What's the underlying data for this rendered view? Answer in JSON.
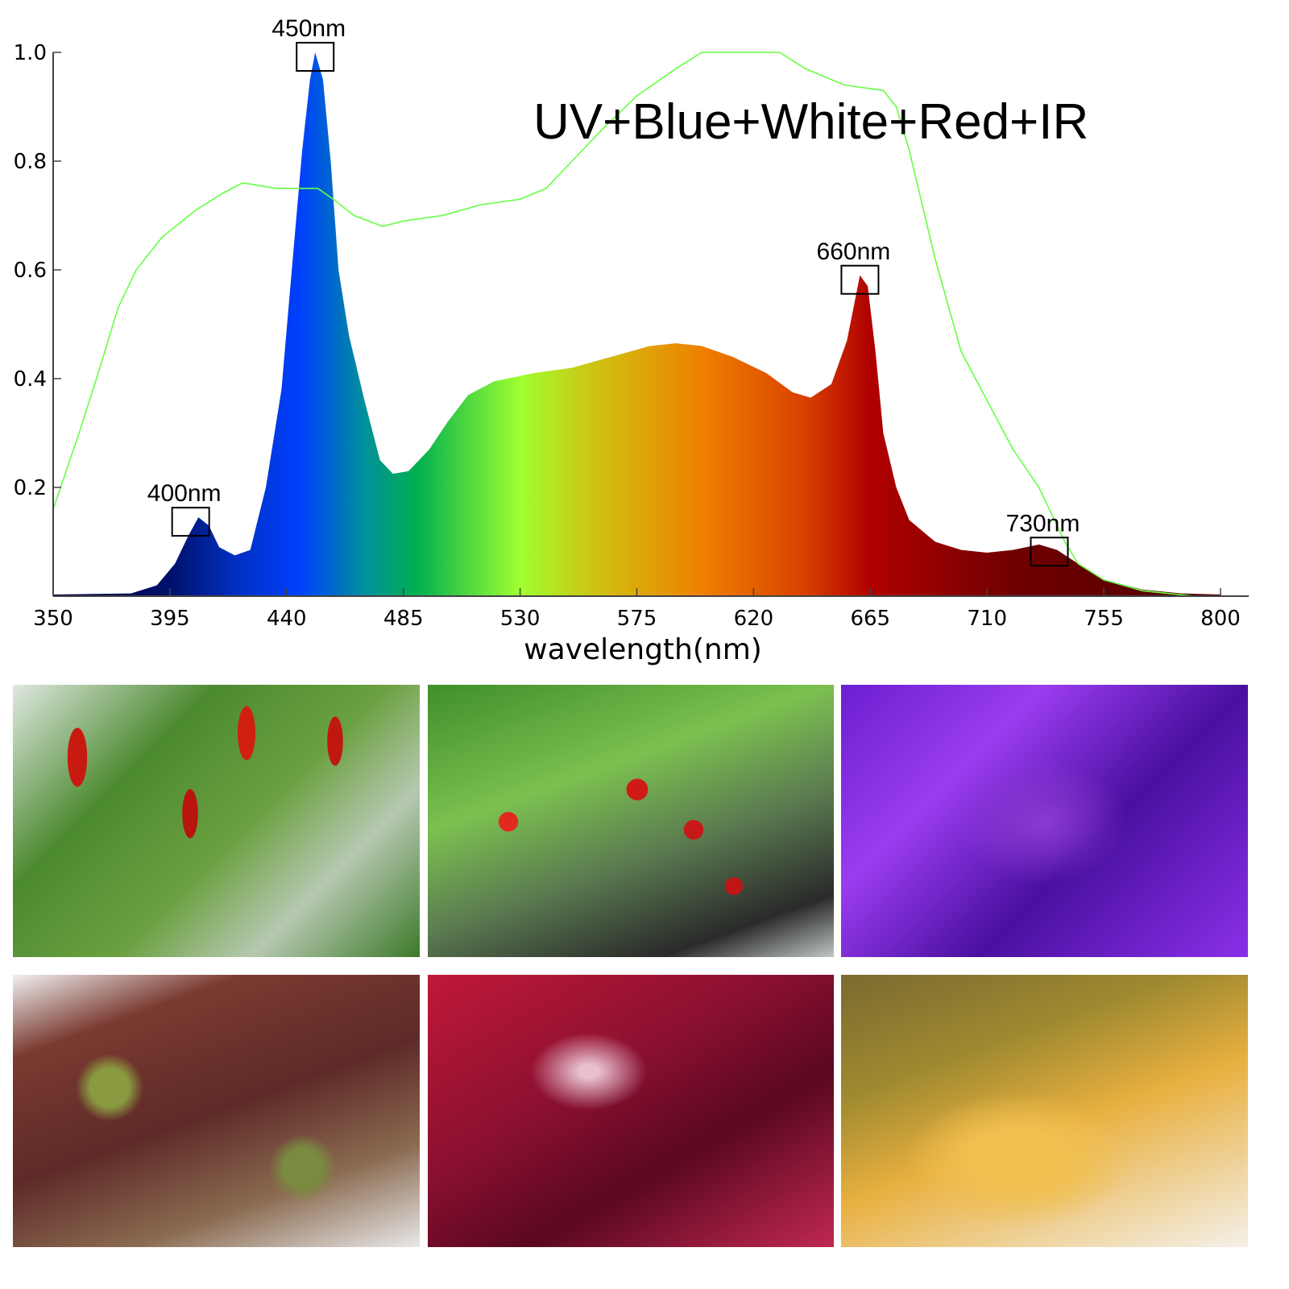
{
  "chart_data": {
    "type": "area",
    "title": "UV+Blue+White+Red+IR",
    "xlabel": "wavelength(nm)",
    "ylabel": "",
    "xlim": [
      350,
      800
    ],
    "ylim": [
      0,
      1.0
    ],
    "xticks": [
      350,
      395,
      440,
      485,
      530,
      575,
      620,
      665,
      710,
      755,
      800
    ],
    "yticks": [
      0.2,
      0.4,
      0.6,
      0.8,
      1.0
    ],
    "ytick_labels": [
      "0.2",
      "0.4",
      "0.6",
      "0.8",
      "1.0"
    ],
    "grid": false,
    "series": [
      {
        "type": "area",
        "fill": "spectral-gradient",
        "x": [
          350,
          380,
          390,
          397,
          402,
          406,
          410,
          414,
          420,
          426,
          432,
          438,
          442,
          446,
          449,
          451,
          454,
          457,
          460,
          464,
          470,
          476,
          481,
          487,
          495,
          502,
          510,
          520,
          535,
          550,
          565,
          580,
          590,
          600,
          612,
          625,
          635,
          642,
          650,
          656,
          661,
          664,
          667,
          670,
          675,
          680,
          690,
          700,
          710,
          720,
          730,
          737,
          745,
          755,
          770,
          785,
          800
        ],
        "y": [
          0.003,
          0.005,
          0.02,
          0.06,
          0.11,
          0.145,
          0.13,
          0.09,
          0.075,
          0.085,
          0.2,
          0.38,
          0.6,
          0.82,
          0.95,
          1.0,
          0.95,
          0.8,
          0.6,
          0.48,
          0.36,
          0.25,
          0.225,
          0.23,
          0.27,
          0.32,
          0.37,
          0.395,
          0.41,
          0.42,
          0.44,
          0.46,
          0.465,
          0.46,
          0.44,
          0.41,
          0.375,
          0.365,
          0.39,
          0.47,
          0.59,
          0.57,
          0.45,
          0.3,
          0.2,
          0.14,
          0.1,
          0.085,
          0.08,
          0.085,
          0.095,
          0.085,
          0.06,
          0.03,
          0.012,
          0.005,
          0.003
        ]
      },
      {
        "type": "line",
        "color": "#66ff44",
        "x": [
          350,
          360,
          368,
          375,
          382,
          392,
          405,
          415,
          423,
          436,
          452,
          458,
          466,
          477,
          485,
          500,
          515,
          530,
          540,
          550,
          562,
          575,
          590,
          600,
          630,
          640,
          655,
          670,
          675,
          680,
          690,
          700,
          710,
          720,
          730,
          740,
          745,
          755,
          770,
          790
        ],
        "y": [
          0.16,
          0.3,
          0.42,
          0.53,
          0.6,
          0.66,
          0.71,
          0.74,
          0.76,
          0.75,
          0.75,
          0.73,
          0.7,
          0.68,
          0.69,
          0.7,
          0.72,
          0.73,
          0.75,
          0.8,
          0.86,
          0.92,
          0.97,
          1.0,
          1.0,
          0.97,
          0.94,
          0.93,
          0.9,
          0.82,
          0.62,
          0.45,
          0.36,
          0.27,
          0.2,
          0.1,
          0.06,
          0.03,
          0.01,
          0.0
        ]
      }
    ],
    "gradient_stops": [
      {
        "nm": 350,
        "color": "#000040"
      },
      {
        "nm": 395,
        "color": "#00106a"
      },
      {
        "nm": 420,
        "color": "#0030c0"
      },
      {
        "nm": 445,
        "color": "#0040ff"
      },
      {
        "nm": 470,
        "color": "#00909a"
      },
      {
        "nm": 490,
        "color": "#00b050"
      },
      {
        "nm": 530,
        "color": "#a0ff30"
      },
      {
        "nm": 560,
        "color": "#d0c010"
      },
      {
        "nm": 600,
        "color": "#f08000"
      },
      {
        "nm": 640,
        "color": "#d84000"
      },
      {
        "nm": 665,
        "color": "#b00000"
      },
      {
        "nm": 720,
        "color": "#700000"
      },
      {
        "nm": 800,
        "color": "#500000"
      }
    ],
    "annotations": [
      {
        "label": "400nm",
        "x": 403,
        "y": 0.145
      },
      {
        "label": "450nm",
        "x": 451,
        "y": 1.0
      },
      {
        "label": "660nm",
        "x": 661,
        "y": 0.59
      },
      {
        "label": "730nm",
        "x": 734,
        "y": 0.09
      }
    ]
  },
  "photos": [
    "chili-peppers",
    "strawberries",
    "purple-lit-plant",
    "red-leaf-lettuce-hydroponic",
    "red-lettuce-closeup",
    "bees-on-flower"
  ]
}
